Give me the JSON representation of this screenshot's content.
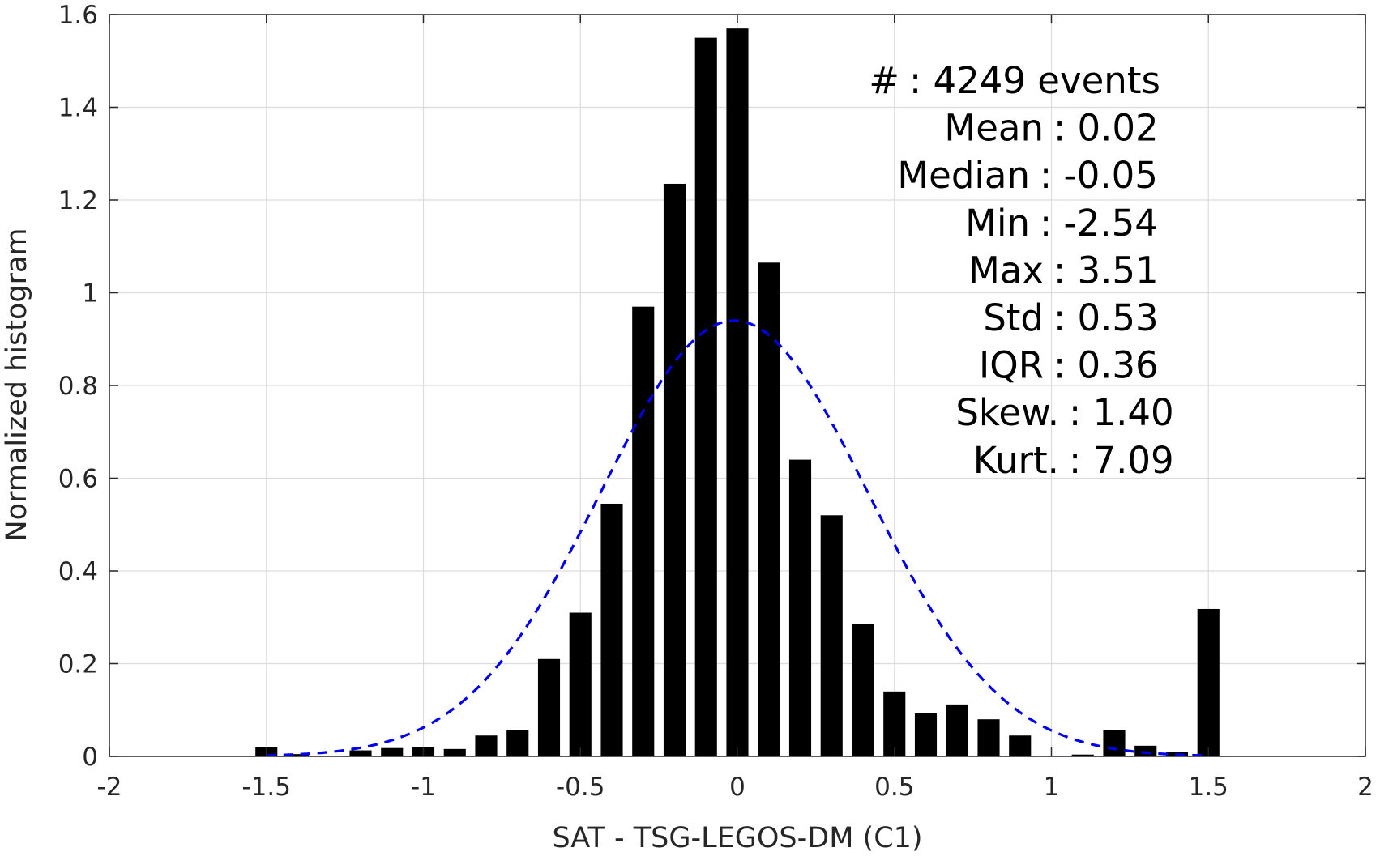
{
  "chart_data": {
    "type": "bar",
    "title": "",
    "xlabel": "SAT - TSG-LEGOS-DM (C1)",
    "ylabel": "Normalized histogram",
    "xlim": [
      -2,
      2
    ],
    "ylim": [
      0,
      1.6
    ],
    "xticks": [
      -2,
      -1.5,
      -1,
      -0.5,
      0,
      0.5,
      1,
      1.5,
      2
    ],
    "xtick_labels": [
      "-2",
      "-1.5",
      "-1",
      "-0.5",
      "0",
      "0.5",
      "1",
      "1.5",
      "2"
    ],
    "yticks": [
      0,
      0.2,
      0.4,
      0.6,
      0.8,
      1,
      1.2,
      1.4,
      1.6
    ],
    "ytick_labels": [
      "0",
      "0.2",
      "0.4",
      "0.6",
      "0.8",
      "1",
      "1.2",
      "1.4",
      "1.6"
    ],
    "grid": true,
    "bar_width": 0.07,
    "bar_color": "#000000",
    "bars": {
      "x": [
        -1.5,
        -1.4,
        -1.2,
        -1.1,
        -1.0,
        -0.9,
        -0.8,
        -0.7,
        -0.6,
        -0.5,
        -0.4,
        -0.3,
        -0.2,
        -0.1,
        0.0,
        0.1,
        0.2,
        0.3,
        0.4,
        0.5,
        0.6,
        0.7,
        0.8,
        0.9,
        1.1,
        1.2,
        1.3,
        1.4,
        1.5
      ],
      "values": [
        0.02,
        0.005,
        0.013,
        0.018,
        0.02,
        0.016,
        0.045,
        0.056,
        0.21,
        0.31,
        0.545,
        0.97,
        1.235,
        1.55,
        1.57,
        1.065,
        0.64,
        0.52,
        0.285,
        0.14,
        0.093,
        0.112,
        0.08,
        0.045,
        0.004,
        0.057,
        0.023,
        0.01,
        0.318
      ]
    },
    "fit_curve": {
      "style": "dashed",
      "color": "#0000ee",
      "mean": -0.01,
      "std": 0.425,
      "peak": 0.94,
      "x_range": [
        -1.5,
        1.5
      ]
    },
    "stats": [
      {
        "label": "#  ",
        "value": ": 4249 events"
      },
      {
        "label": "Mean",
        "value": ": 0.02"
      },
      {
        "label": "Median",
        "value": ": -0.05"
      },
      {
        "label": "Min",
        "value": ": -2.54"
      },
      {
        "label": "Max",
        "value": ": 3.51"
      },
      {
        "label": "Std",
        "value": ": 0.53"
      },
      {
        "label": "IQR",
        "value": ": 0.36"
      },
      {
        "label": "Skew.",
        "value": ": 1.40"
      },
      {
        "label": "Kurt.",
        "value": ": 7.09"
      }
    ]
  }
}
